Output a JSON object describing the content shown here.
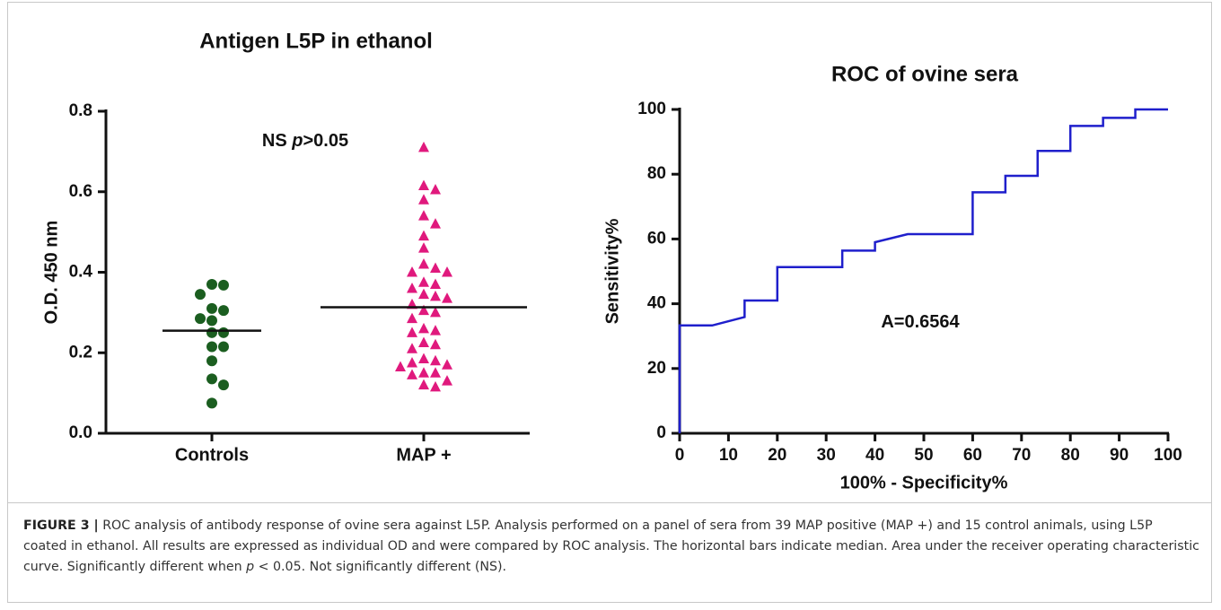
{
  "chart_data": [
    {
      "type": "strip",
      "title": "Antigen L5P in ethanol",
      "ylabel": "O.D. 450 nm",
      "annotation": [
        "NS ",
        "p",
        ">0.05"
      ],
      "categories": [
        "Controls",
        "MAP +"
      ],
      "ylim": [
        0,
        0.8
      ],
      "yticks": [
        {
          "value": 0,
          "label": "0.0"
        },
        0.2,
        0.4,
        0.6,
        0.8
      ],
      "series": [
        {
          "name": "Controls",
          "color": "#1b5e20",
          "marker": "circle",
          "median": 0.255,
          "values": [
            0.37,
            0.368,
            0.345,
            0.31,
            0.305,
            0.285,
            0.28,
            0.25,
            0.25,
            0.215,
            0.215,
            0.18,
            0.135,
            0.12,
            0.075
          ]
        },
        {
          "name": "MAP +",
          "color": "#e0197d",
          "marker": "triangle",
          "median": 0.313,
          "values": [
            0.71,
            0.615,
            0.605,
            0.58,
            0.54,
            0.52,
            0.49,
            0.46,
            0.42,
            0.41,
            0.4,
            0.4,
            0.375,
            0.37,
            0.36,
            0.345,
            0.34,
            0.335,
            0.32,
            0.305,
            0.3,
            0.285,
            0.26,
            0.255,
            0.25,
            0.225,
            0.22,
            0.21,
            0.185,
            0.18,
            0.175,
            0.17,
            0.165,
            0.15,
            0.15,
            0.145,
            0.13,
            0.12,
            0.115
          ]
        }
      ]
    },
    {
      "type": "line",
      "title": "ROC of ovine sera",
      "xlabel": "100% - Specificity%",
      "ylabel": "Sensitivity%",
      "annotation": [
        "A=0.6564"
      ],
      "xlim": [
        0,
        100
      ],
      "ylim": [
        0,
        100
      ],
      "xticks": [
        0,
        10,
        20,
        30,
        40,
        50,
        60,
        70,
        80,
        90,
        100
      ],
      "yticks": [
        0,
        20,
        40,
        60,
        80,
        100
      ],
      "x": [
        0,
        0,
        6.67,
        13.3,
        13.3,
        20,
        20,
        33.3,
        33.3,
        40,
        40,
        46.7,
        60,
        60,
        66.7,
        66.7,
        73.3,
        73.3,
        80,
        80,
        86.7,
        86.7,
        93.3,
        93.3,
        100
      ],
      "series": [
        {
          "color": "#1f1fcc",
          "values": [
            0,
            33.3,
            33.3,
            35.9,
            41,
            41,
            51.3,
            51.3,
            56.4,
            56.4,
            59,
            61.5,
            61.5,
            74.4,
            74.4,
            79.5,
            79.5,
            87.2,
            87.2,
            94.9,
            94.9,
            97.4,
            97.4,
            100,
            100
          ]
        }
      ]
    }
  ],
  "caption": {
    "label": "FIGURE 3 |",
    "body": [
      "ROC analysis of antibody response of ovine sera against L5P. Analysis performed on a panel of sera from 39 MAP positive (MAP +) and 15 control animals, using L5P coated in ethanol. All results are expressed as individual OD and were compared by ROC analysis. The horizontal bars indicate median. Area under the receiver operating characteristic curve. Significantly different when ",
      "p",
      " < 0.05. Not significantly different (NS)."
    ]
  }
}
